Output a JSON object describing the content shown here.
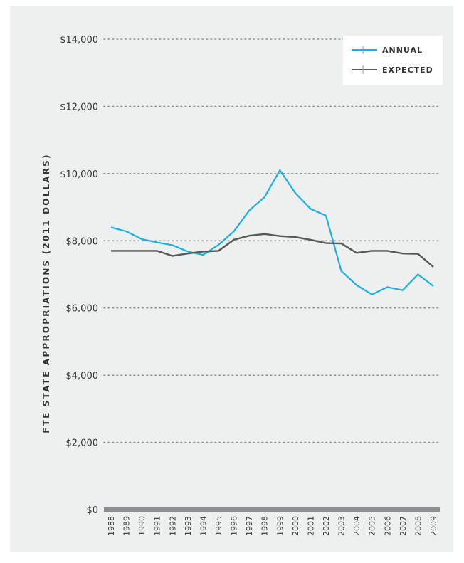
{
  "chart_data": {
    "type": "line",
    "title": "",
    "xlabel": "",
    "ylabel": "FTE STATE APPROPRIATIONS (2011 DOLLARS)",
    "x": [
      "1988",
      "1989",
      "1990",
      "1991",
      "1992",
      "1993",
      "1994",
      "1995",
      "1996",
      "1997",
      "1998",
      "1999",
      "2000",
      "2001",
      "2002",
      "2003",
      "2004",
      "2005",
      "2006",
      "2007",
      "2008",
      "2009"
    ],
    "ylim": [
      0,
      14000
    ],
    "yticks": [
      0,
      2000,
      4000,
      6000,
      8000,
      10000,
      12000,
      14000
    ],
    "ytick_labels": [
      "$0",
      "$2,000",
      "$4,000",
      "$6,000",
      "$8,000",
      "$10,000",
      "$12,000",
      "$14,000"
    ],
    "grid": "dotted horizontal",
    "legend_position": "top-right",
    "series": [
      {
        "name": "ANNUAL",
        "color": "#1ab0e0",
        "values": [
          8400,
          8280,
          8050,
          7950,
          7870,
          7680,
          7580,
          7880,
          8280,
          8900,
          9300,
          10100,
          9420,
          8950,
          8750,
          7100,
          6680,
          6400,
          6620,
          6530,
          7000,
          6650
        ]
      },
      {
        "name": "EXPECTED",
        "color": "#555759",
        "values": [
          7700,
          7700,
          7700,
          7700,
          7550,
          7620,
          7680,
          7700,
          8030,
          8150,
          8200,
          8140,
          8110,
          8030,
          7930,
          7920,
          7640,
          7700,
          7700,
          7620,
          7610,
          7220
        ]
      }
    ],
    "axis_color": "#8c8e90"
  }
}
